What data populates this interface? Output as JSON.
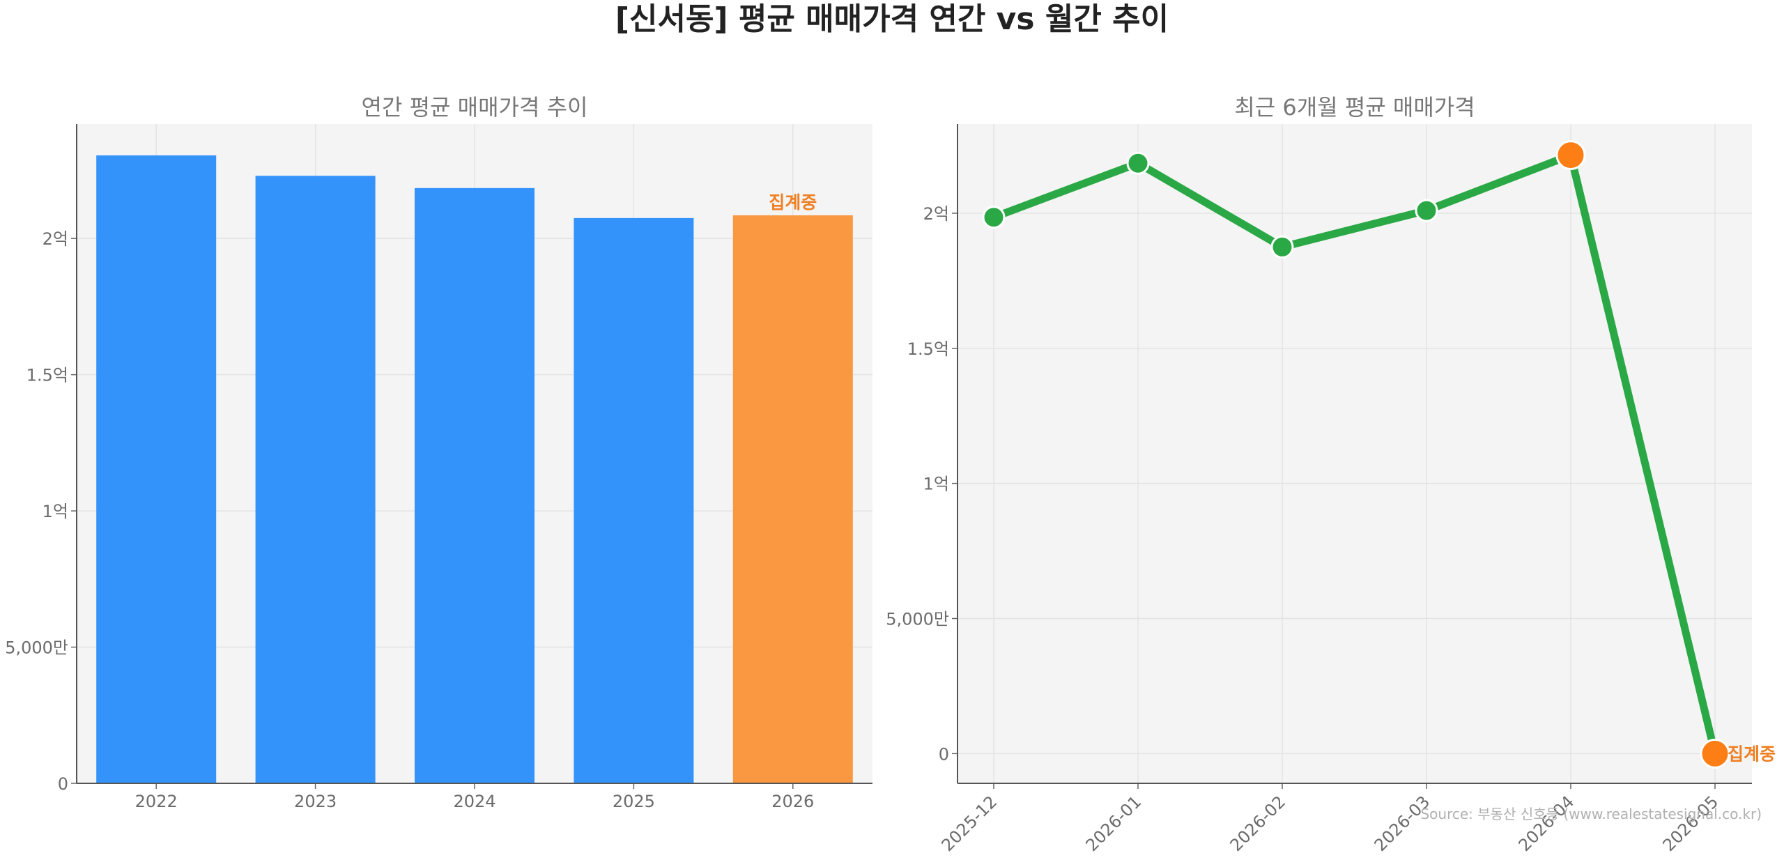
{
  "title": "[신서동] 평균 매매가격 연간 vs 월간 추이",
  "source": "Source: 부동산 신호등 (www.realestatesignal.co.kr)",
  "colors": {
    "bar": "#3393fb",
    "bar_highlight": "#f99840",
    "line": "#2aa845",
    "marker_highlight": "#fd7e14",
    "flag_text": "#f07f22",
    "plot_bg": "#f4f4f4"
  },
  "chart_data": [
    {
      "type": "bar",
      "title": "연간 평균 매매가격 추이",
      "categories": [
        "2022",
        "2023",
        "2024",
        "2025",
        "2026"
      ],
      "values": [
        230500000,
        223000000,
        218500000,
        207500000,
        208500000
      ],
      "highlight_index": 4,
      "annotation": {
        "index": 4,
        "text": "집계중"
      },
      "ylim": [
        0,
        242000000
      ],
      "yticks": [
        {
          "value": 0,
          "label": "0"
        },
        {
          "value": 50000000,
          "label": "5,000만"
        },
        {
          "value": 100000000,
          "label": "1억"
        },
        {
          "value": 150000000,
          "label": "1.5억"
        },
        {
          "value": 200000000,
          "label": "2억"
        }
      ],
      "grid": true
    },
    {
      "type": "line",
      "title": "최근 6개월 평균 매매가격",
      "categories": [
        "2025-12",
        "2026-01",
        "2026-02",
        "2026-03",
        "2026-04",
        "2026-05"
      ],
      "values": [
        198500000,
        218500000,
        187500000,
        201000000,
        221500000,
        0
      ],
      "highlight_indices": [
        4,
        5
      ],
      "annotation": {
        "index": 5,
        "text": "집계중"
      },
      "ylim": [
        -11000000,
        233000000
      ],
      "yticks": [
        {
          "value": 0,
          "label": "0"
        },
        {
          "value": 50000000,
          "label": "5,000만"
        },
        {
          "value": 100000000,
          "label": "1억"
        },
        {
          "value": 150000000,
          "label": "1.5억"
        },
        {
          "value": 200000000,
          "label": "2억"
        }
      ],
      "grid": true
    }
  ]
}
